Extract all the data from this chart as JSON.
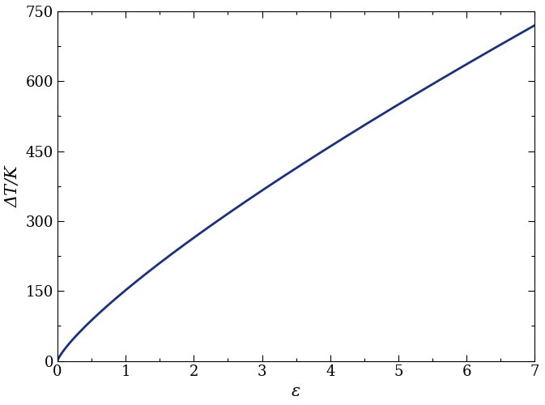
{
  "xlim": [
    0,
    7
  ],
  "ylim": [
    0,
    750
  ],
  "xticks": [
    0,
    1,
    2,
    3,
    4,
    5,
    6,
    7
  ],
  "yticks": [
    0,
    150,
    300,
    450,
    600,
    750
  ],
  "xlabel": "ε",
  "ylabel": "ΔT/K",
  "line_color": "#1a3080",
  "line_width": 2.0,
  "curve_n": 0.8,
  "curve_endpoint_x": 7.0,
  "curve_endpoint_y": 720.0,
  "background_color": "#ffffff",
  "tick_label_fontsize": 13,
  "axis_label_fontsize": 15,
  "figure_width": 6.73,
  "figure_height": 5.0,
  "dpi": 100
}
